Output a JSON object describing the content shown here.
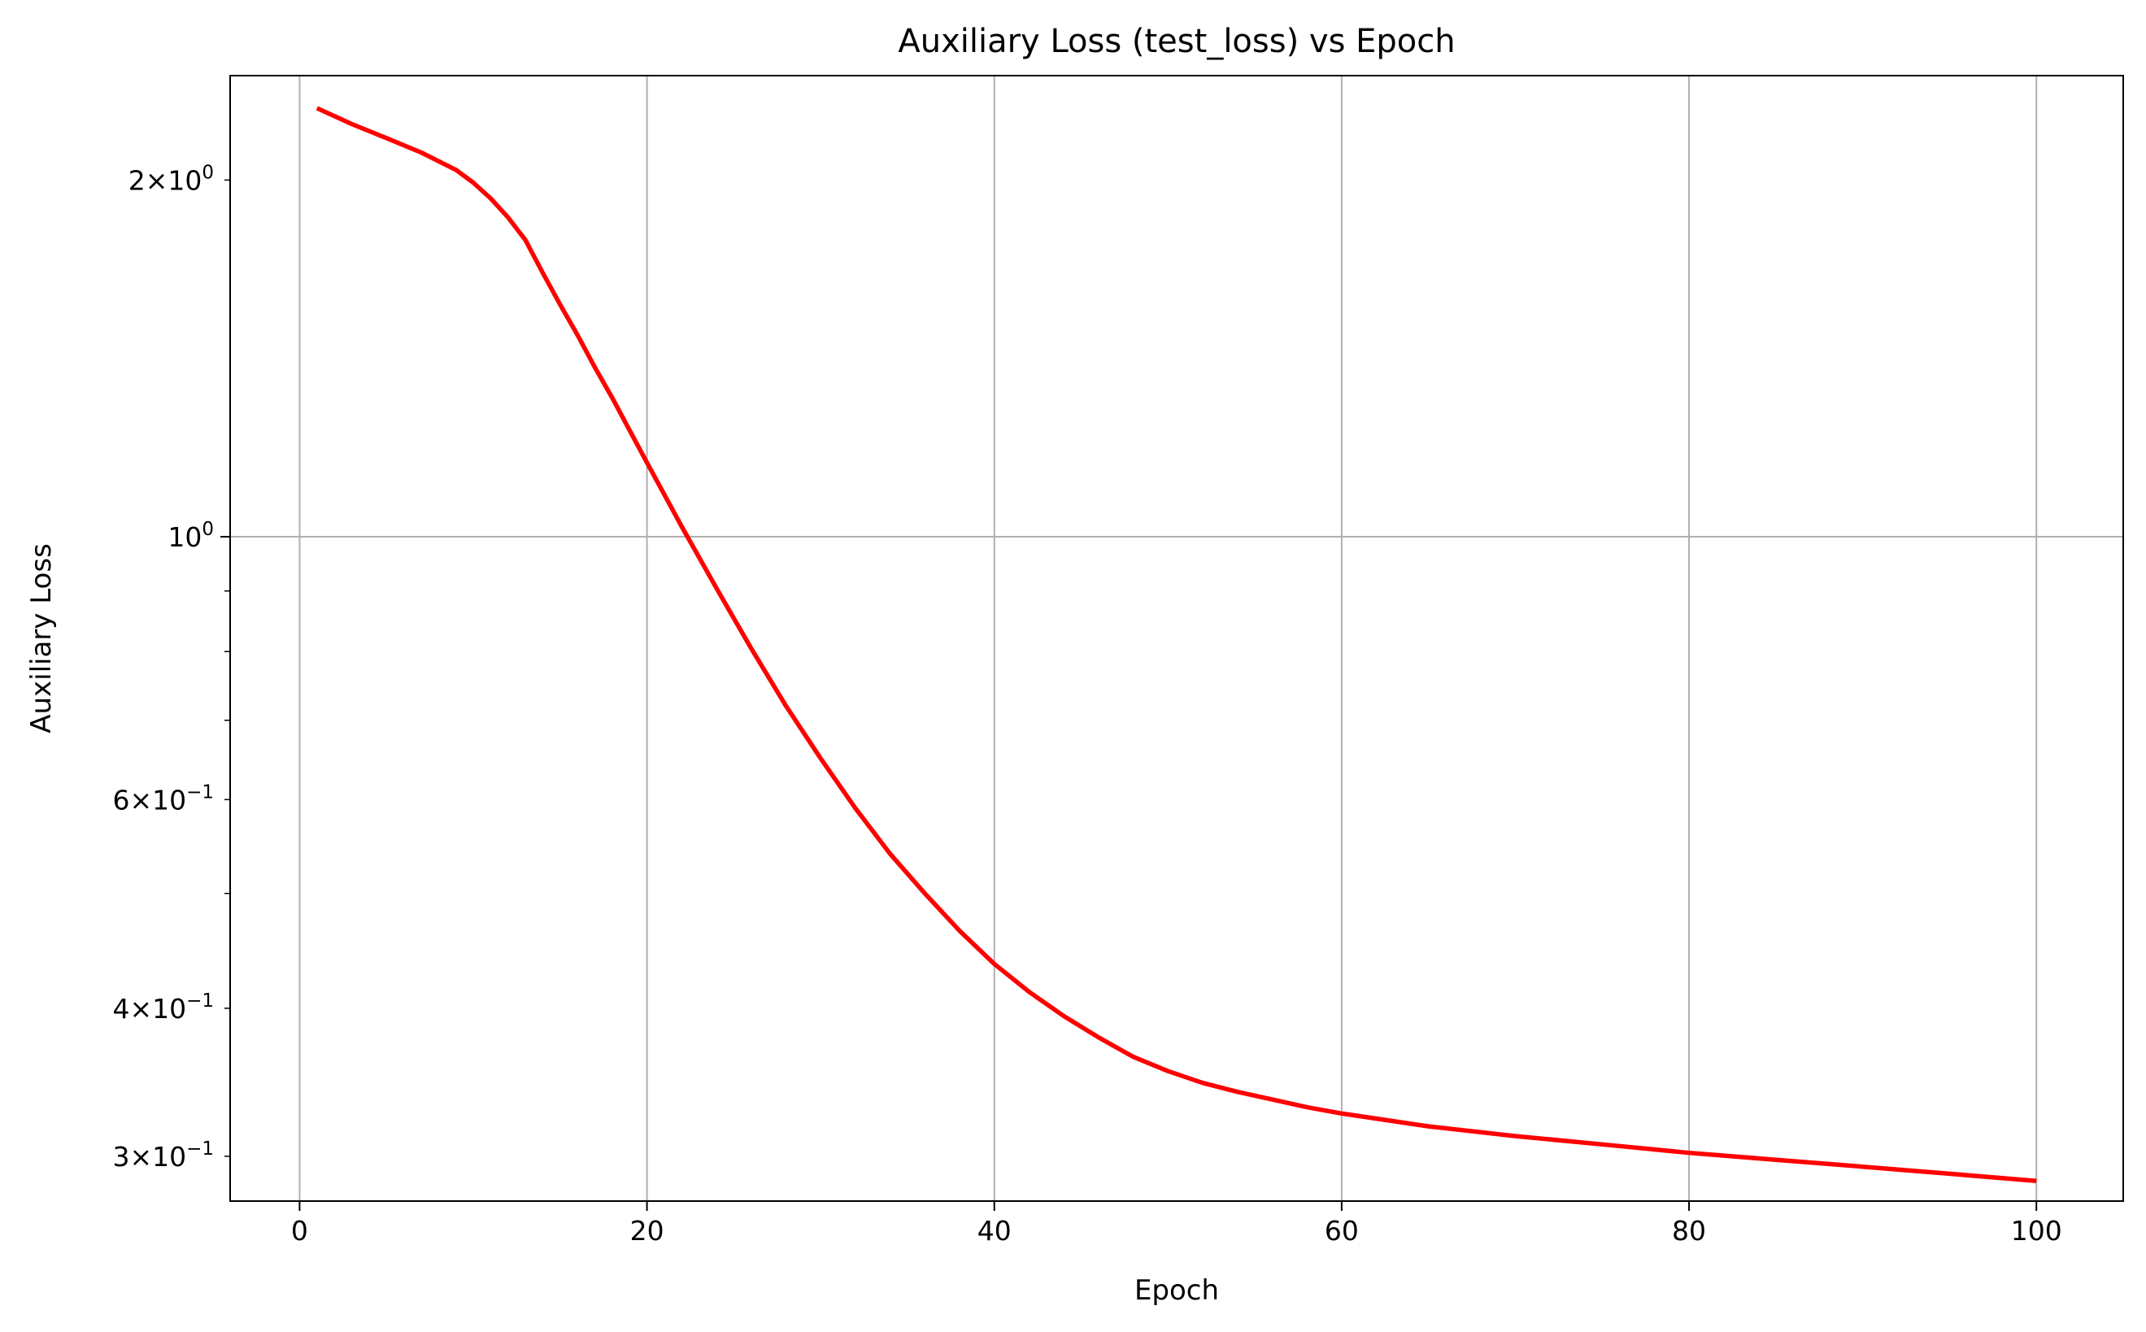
{
  "chart_data": {
    "type": "line",
    "title": "Auxiliary Loss (test_loss) vs Epoch",
    "xlabel": "Epoch",
    "ylabel": "Auxiliary Loss",
    "xlim": [
      -4,
      105
    ],
    "ylim": [
      0.275,
      2.45
    ],
    "yscale": "log",
    "grid": true,
    "x_ticks": [
      0,
      20,
      40,
      60,
      80,
      100
    ],
    "y_major_ticks": [
      {
        "value": 1.0,
        "base": "10",
        "exp": "0"
      }
    ],
    "y_minor_labeled_ticks": [
      {
        "value": 2.0,
        "mantissa": "2",
        "exp": "0"
      },
      {
        "value": 0.6,
        "mantissa": "6",
        "exp": "−1"
      },
      {
        "value": 0.4,
        "mantissa": "4",
        "exp": "−1"
      },
      {
        "value": 0.3,
        "mantissa": "3",
        "exp": "−1"
      }
    ],
    "y_minor_unlabeled_ticks": [
      0.9,
      0.8,
      0.7,
      0.5
    ],
    "series": [
      {
        "name": "",
        "color": "#ff0000",
        "x": [
          1,
          3,
          5,
          7,
          9,
          10,
          11,
          12,
          13,
          14,
          15,
          16,
          17,
          18,
          19,
          20,
          22,
          24,
          26,
          28,
          30,
          32,
          34,
          36,
          38,
          40,
          42,
          44,
          46,
          48,
          50,
          52,
          54,
          56,
          58,
          60,
          65,
          70,
          75,
          80,
          85,
          90,
          95,
          100
        ],
        "y": [
          2.3,
          2.23,
          2.17,
          2.11,
          2.04,
          1.99,
          1.93,
          1.86,
          1.78,
          1.67,
          1.57,
          1.48,
          1.39,
          1.31,
          1.23,
          1.155,
          1.02,
          0.905,
          0.805,
          0.72,
          0.65,
          0.59,
          0.54,
          0.5,
          0.465,
          0.436,
          0.413,
          0.394,
          0.378,
          0.364,
          0.354,
          0.346,
          0.34,
          0.335,
          0.33,
          0.326,
          0.318,
          0.312,
          0.307,
          0.302,
          0.298,
          0.294,
          0.29,
          0.286
        ]
      }
    ]
  }
}
